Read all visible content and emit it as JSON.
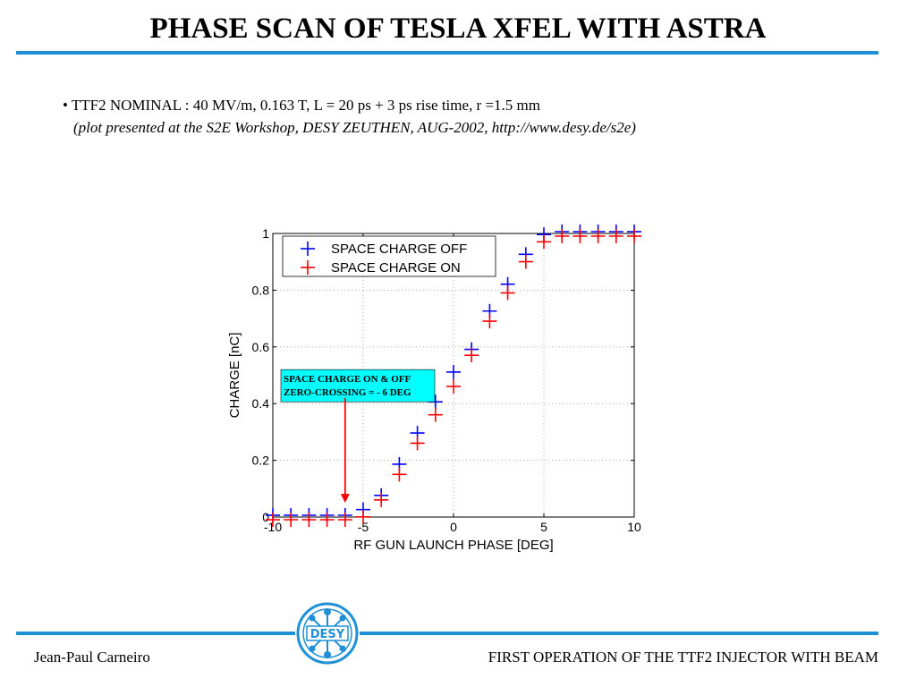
{
  "slide": {
    "title": "PHASE SCAN OF TESLA XFEL WITH ASTRA",
    "bullet": "• TTF2 NOMINAL : 40 MV/m, 0.163 T, L = 20 ps + 3 ps rise time, r =1.5 mm",
    "note": "(plot presented at the S2E Workshop, DESY ZEUTHEN, AUG-2002, http://www.desy.de/s2e)",
    "footer_left": "Jean-Paul Carneiro",
    "footer_right": "FIRST OPERATION OF THE TTF2 INJECTOR WITH BEAM",
    "logo_text": "DESY"
  },
  "colors": {
    "accent": "#1f8fd6",
    "series_off": "#0000ff",
    "series_on": "#ff0000",
    "annotation_bg": "#00ffff",
    "arrow": "#ff0000"
  },
  "chart_data": {
    "type": "scatter",
    "xlabel": "RF GUN LAUNCH PHASE [DEG]",
    "ylabel": "CHARGE [nC]",
    "xlim": [
      -10,
      10
    ],
    "ylim": [
      0,
      1
    ],
    "xticks": [
      -10,
      -5,
      0,
      5,
      10
    ],
    "yticks": [
      0,
      0.2,
      0.4,
      0.6,
      0.8,
      1
    ],
    "grid": true,
    "legend_position": "top-left",
    "annotation": {
      "lines": [
        "SPACE CHARGE ON & OFF",
        "ZERO-CROSSING = - 6 DEG"
      ],
      "arrow_x": -6,
      "arrow_y_start": 0.42,
      "arrow_y_end": 0.05
    },
    "series": [
      {
        "name": "SPACE CHARGE OFF",
        "x": [
          -10,
          -9,
          -8,
          -7,
          -6,
          -5,
          -4,
          -3,
          -2,
          -1,
          0,
          1,
          2,
          3,
          4,
          5,
          6,
          7,
          8,
          9,
          10
        ],
        "y": [
          0,
          0,
          0,
          0,
          0,
          0.02,
          0.07,
          0.18,
          0.29,
          0.4,
          0.505,
          0.585,
          0.72,
          0.815,
          0.92,
          0.99,
          1.0,
          1.0,
          1.0,
          1.0,
          1.0
        ]
      },
      {
        "name": "SPACE CHARGE ON",
        "x": [
          -10,
          -9,
          -8,
          -7,
          -6,
          -5,
          -4,
          -3,
          -2,
          -1,
          0,
          1,
          2,
          3,
          4,
          5,
          6,
          7,
          8,
          9,
          10
        ],
        "y": [
          0,
          0,
          0,
          0,
          0,
          0.01,
          0.07,
          0.16,
          0.27,
          0.37,
          0.47,
          0.58,
          0.7,
          0.8,
          0.91,
          0.98,
          1.0,
          1.0,
          1.0,
          1.0,
          1.0
        ]
      }
    ]
  }
}
